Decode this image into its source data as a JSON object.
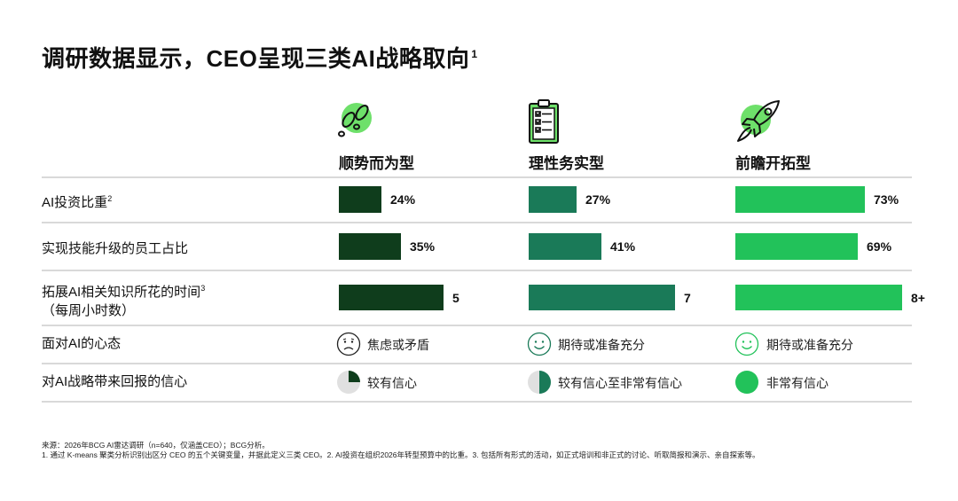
{
  "title": "调研数据显示，CEO呈现三类AI战略取向",
  "title_sup": "1",
  "colors": {
    "dark_green": "#0f3d1c",
    "mid_green": "#1a7a58",
    "bright_green": "#22c25a",
    "icon_green": "#6ee06a",
    "line_gray": "#d9d9d9",
    "pie_gray": "#e0e0e0"
  },
  "columns": [
    {
      "name": "顺势而为型",
      "icon": "footprints-icon",
      "color": "#0f3d1c"
    },
    {
      "name": "理性务实型",
      "icon": "clipboard-checklist-icon",
      "color": "#1a7a58"
    },
    {
      "name": "前瞻开拓型",
      "icon": "rocket-icon",
      "color": "#22c25a"
    }
  ],
  "rows": {
    "investment": {
      "label": "AI投资比重",
      "sup": "2"
    },
    "upskill": {
      "label": "实现技能升级的员工占比"
    },
    "time": {
      "label_line1": "拓展AI相关知识所花的时间",
      "sup": "3",
      "label_line2": "（每周小时数）"
    },
    "mindset": {
      "label": "面对AI的心态"
    },
    "confidence": {
      "label": "对AI战略带来回报的信心"
    }
  },
  "mindset_values": [
    {
      "text": "焦虑或矛盾",
      "icon": "worried-face-icon"
    },
    {
      "text": "期待或准备充分",
      "icon": "smiling-face-icon"
    },
    {
      "text": "期待或准备充分",
      "icon": "smiling-face-icon"
    }
  ],
  "confidence_values": [
    {
      "text": "较有信心",
      "fill_fraction": 0.25
    },
    {
      "text": "较有信心至非常有信心",
      "fill_fraction": 0.5
    },
    {
      "text": "非常有信心",
      "fill_fraction": 1.0
    }
  ],
  "chart_data": {
    "type": "bar",
    "categories": [
      "顺势而为型",
      "理性务实型",
      "前瞻开拓型"
    ],
    "series": [
      {
        "name": "AI投资比重",
        "values": [
          24,
          27,
          73
        ],
        "labels": [
          "24%",
          "27%",
          "73%"
        ],
        "max": 100
      },
      {
        "name": "实现技能升级的员工占比",
        "values": [
          35,
          41,
          69
        ],
        "labels": [
          "35%",
          "41%",
          "69%"
        ],
        "max": 100
      },
      {
        "name": "拓展AI相关知识所花的时间（每周小时数）",
        "values": [
          5,
          7,
          8
        ],
        "labels": [
          "5",
          "7",
          "8+"
        ],
        "max": 8.5
      }
    ]
  },
  "footnotes": {
    "source": "来源：2026年BCG AI雷达调研（n=640，仅涵盖CEO）；BCG分析。",
    "notes": "1. 通过 K-means 聚类分析识别出区分 CEO 的五个关键变量，并据此定义三类 CEO。2. AI投资在组织2026年转型预算中的比重。3. 包括所有形式的活动，如正式培训和非正式的讨论、听取简报和演示、亲自探索等。"
  }
}
